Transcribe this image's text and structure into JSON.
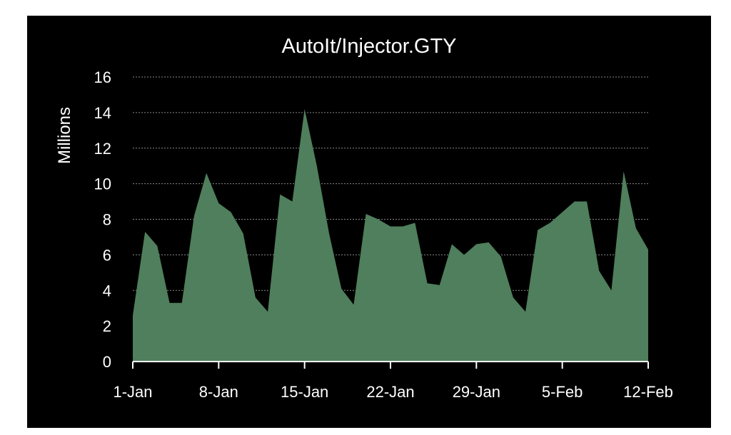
{
  "chart_data": {
    "type": "area",
    "title": "AutoIt/Injector.GTY",
    "xlabel": "",
    "ylabel": "Millions",
    "ylim": [
      0,
      16
    ],
    "yticks": [
      0,
      2,
      4,
      6,
      8,
      10,
      12,
      14,
      16
    ],
    "x_tick_labels": [
      "1-Jan",
      "8-Jan",
      "15-Jan",
      "22-Jan",
      "29-Jan",
      "5-Feb",
      "12-Feb"
    ],
    "grid": true,
    "legend": "none",
    "x": [
      "1-Jan",
      "2-Jan",
      "3-Jan",
      "4-Jan",
      "5-Jan",
      "6-Jan",
      "7-Jan",
      "8-Jan",
      "9-Jan",
      "10-Jan",
      "11-Jan",
      "12-Jan",
      "13-Jan",
      "14-Jan",
      "15-Jan",
      "16-Jan",
      "17-Jan",
      "18-Jan",
      "19-Jan",
      "20-Jan",
      "21-Jan",
      "22-Jan",
      "23-Jan",
      "24-Jan",
      "25-Jan",
      "26-Jan",
      "27-Jan",
      "28-Jan",
      "29-Jan",
      "30-Jan",
      "31-Jan",
      "1-Feb",
      "2-Feb",
      "3-Feb",
      "4-Feb",
      "5-Feb",
      "6-Feb",
      "7-Feb",
      "8-Feb",
      "9-Feb",
      "10-Feb",
      "11-Feb",
      "12-Feb"
    ],
    "series": [
      {
        "values": [
          2.6,
          7.3,
          6.5,
          3.3,
          3.3,
          8.2,
          10.6,
          8.9,
          8.4,
          7.2,
          3.6,
          2.8,
          9.4,
          9.0,
          14.2,
          11.0,
          7.2,
          4.1,
          3.2,
          8.3,
          8.0,
          7.6,
          7.6,
          7.8,
          4.4,
          4.3,
          6.6,
          6.0,
          6.6,
          6.7,
          5.9,
          3.6,
          2.8,
          7.4,
          7.8,
          8.4,
          9.0,
          9.0,
          5.1,
          4.0,
          10.7,
          7.5,
          6.3
        ]
      }
    ],
    "colors": {
      "background": "#000000",
      "area_fill": "#4f7f5c",
      "grid": "#8a8a8a",
      "text": "#ffffff"
    }
  }
}
